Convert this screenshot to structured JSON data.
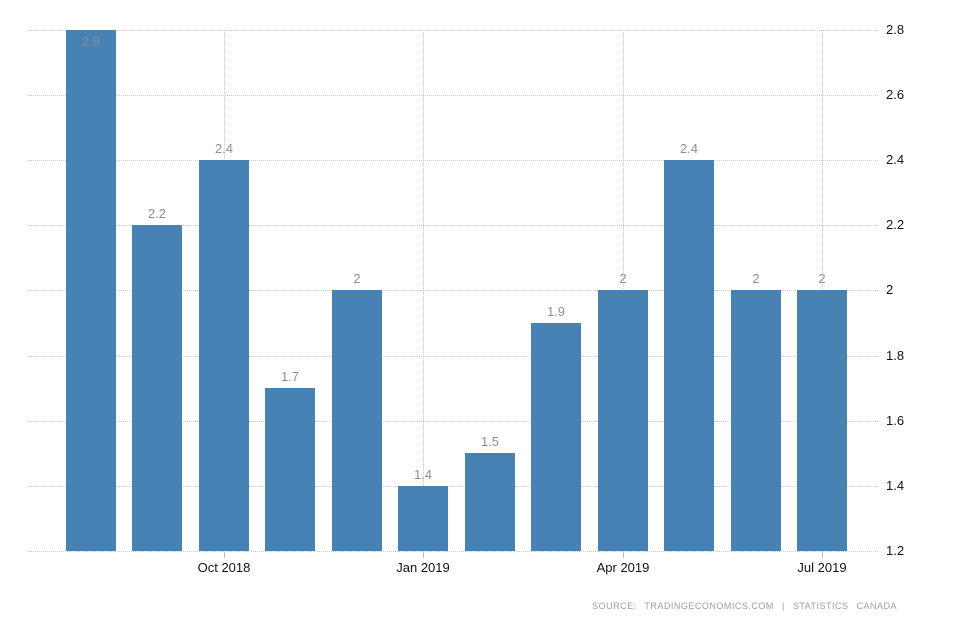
{
  "chart_data": {
    "type": "bar",
    "title": "",
    "values": [
      2.8,
      2.2,
      2.4,
      1.7,
      2,
      1.4,
      1.5,
      1.9,
      2,
      2.4,
      2,
      2
    ],
    "bar_labels": [
      "2.8",
      "2.2",
      "2.4",
      "1.7",
      "2",
      "1.4",
      "1.5",
      "1.9",
      "2",
      "2.4",
      "2",
      "2"
    ],
    "x_ticks": [
      {
        "bar_index": 2,
        "label": "Oct 2018"
      },
      {
        "bar_index": 5,
        "label": "Jan 2019"
      },
      {
        "bar_index": 8,
        "label": "Apr 2019"
      },
      {
        "bar_index": 11,
        "label": "Jul 2019"
      }
    ],
    "y_ticks": [
      {
        "value": 2.8,
        "label": "2.8"
      },
      {
        "value": 2.6,
        "label": "2.6"
      },
      {
        "value": 2.4,
        "label": "2.4"
      },
      {
        "value": 2.2,
        "label": "2.2"
      },
      {
        "value": 2.0,
        "label": "2"
      },
      {
        "value": 1.8,
        "label": "1.8"
      },
      {
        "value": 1.6,
        "label": "1.6"
      },
      {
        "value": 1.4,
        "label": "1.4"
      },
      {
        "value": 1.2,
        "label": "1.2"
      }
    ],
    "ylim": [
      1.2,
      2.8
    ],
    "grid": true,
    "legend": "none",
    "xlabel": "",
    "ylabel": "",
    "colors": {
      "bar": "#4782b5",
      "gridline": "#c9c9c9",
      "axis_text": "#141414",
      "value_label": "#8f8f8f",
      "value_label_inside": "#848b92",
      "source_text": "#97a0a8"
    },
    "source": {
      "prefix": "SOURCE:",
      "site": "TRADINGECONOMICS.COM",
      "separator": "|",
      "org": "STATISTICS CANADA"
    }
  }
}
